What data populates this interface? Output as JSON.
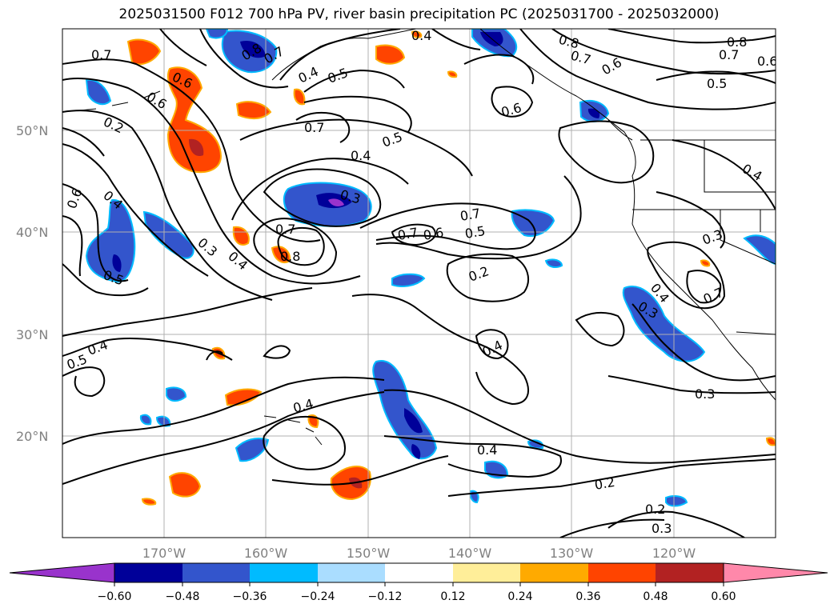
{
  "title": "2025031500 F012 700 hPa PV, river basin precipitation PC (2025031700 - 2025032000)",
  "lat_labels": [
    "50°N",
    "40°N",
    "30°N",
    "20°N"
  ],
  "lon_labels": [
    "170°W",
    "160°W",
    "150°W",
    "140°W",
    "130°W",
    "120°W"
  ],
  "contour_labels": [
    "0.7",
    "0.6",
    "0.6",
    "0.2",
    "0.8",
    "0.7",
    "0.4",
    "0.5",
    "0.4",
    "0.7",
    "0.8",
    "0.7",
    "0.6",
    "0.8",
    "0.7",
    "0.6",
    "0.5",
    "0.6",
    "0.4",
    "0.5",
    "0.4",
    "0.3",
    "0.6",
    "0.5",
    "0.3",
    "0.4",
    "0.7",
    "0.8",
    "0.7",
    "0.7",
    "0.6",
    "0.5",
    "0.2",
    "0.4",
    "0.4",
    "0.5",
    "0.4",
    "0.4",
    "0.3",
    "0.4",
    "0.3",
    "0.7",
    "0.3",
    "0.4",
    "0.2",
    "0.2",
    "0.3"
  ],
  "colorbar": {
    "ticks": [
      "−0.60",
      "−0.48",
      "−0.36",
      "−0.24",
      "−0.12",
      "0.12",
      "0.24",
      "0.36",
      "0.48",
      "0.60"
    ],
    "colors": [
      "#9933cc",
      "#000099",
      "#3355cc",
      "#00bbff",
      "#aaddff",
      "#ffffff",
      "#ffee99",
      "#ffaa00",
      "#ff4400",
      "#b22222",
      "#ff88aa"
    ]
  },
  "fill_colors": {
    "purple": "#9933cc",
    "navy": "#000099",
    "blue": "#3355cc",
    "cyan": "#00bbff",
    "lightblue": "#aaddff",
    "yellow": "#ffee99",
    "orange": "#ffaa00",
    "redorange": "#ff4400",
    "darkred": "#b22222"
  }
}
